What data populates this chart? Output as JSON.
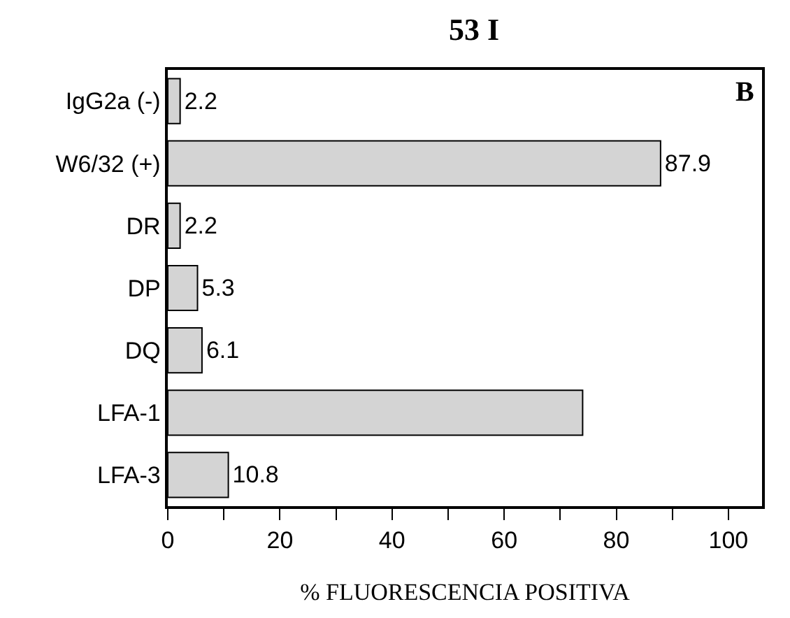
{
  "chart_data": {
    "type": "bar",
    "orientation": "horizontal",
    "title": "53 I",
    "xlabel": "% FLUORESCENCIA POSITIVA",
    "annotations": [
      "B"
    ],
    "categories": [
      "IgG2a (-)",
      "W6/32 (+)",
      "DR",
      "DP",
      "DQ",
      "LFA-1",
      "LFA-3"
    ],
    "values": [
      2.2,
      87.9,
      2.2,
      5.3,
      6.1,
      74,
      10.8
    ],
    "value_labels": [
      "2.2",
      "87.9",
      "2.2",
      "5.3",
      "6.1",
      null,
      "10.8"
    ],
    "color": "#d4d4d4",
    "xlim": [
      0,
      106
    ],
    "xticks": [
      0,
      {
        "value": 10,
        "label": null
      },
      20,
      {
        "value": 30,
        "label": null
      },
      40,
      {
        "value": 50,
        "label": null
      },
      60,
      {
        "value": 70,
        "label": null
      },
      80,
      {
        "value": 90,
        "label": null
      },
      100
    ],
    "grid": false
  }
}
